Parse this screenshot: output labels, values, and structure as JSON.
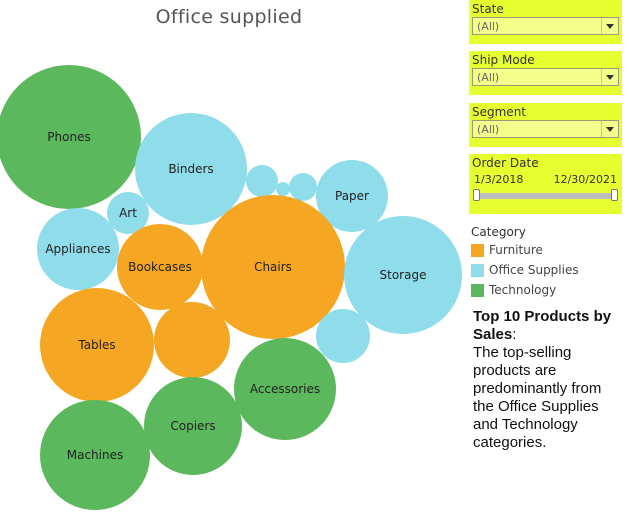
{
  "title": "Office supplied",
  "filters": {
    "state": {
      "label": "State",
      "value": "(All)"
    },
    "ship_mode": {
      "label": "Ship Mode",
      "value": "(All)"
    },
    "segment": {
      "label": "Segment",
      "value": "(All)"
    },
    "order_date": {
      "label": "Order Date",
      "start": "1/3/2018",
      "end": "12/30/2021"
    }
  },
  "legend": {
    "title": "Category",
    "items": [
      {
        "label": "Furniture",
        "color": "#f5a623"
      },
      {
        "label": "Office Supplies",
        "color": "#8fdcea"
      },
      {
        "label": "Technology",
        "color": "#5cb85c"
      }
    ]
  },
  "note": {
    "title": "Top 10 Products by Sales",
    "colon": ":",
    "body": "The top-selling products are predominantly from the Office Supplies and Technology categories."
  },
  "colors": {
    "filter_bg": "#e6ff2e",
    "dropdown_bg": "#f3ff8a"
  },
  "bubbles": [
    {
      "label": "Phones",
      "category": "Technology"
    },
    {
      "label": "Binders",
      "category": "Office Supplies"
    },
    {
      "label": "",
      "category": "Office Supplies"
    },
    {
      "label": "",
      "category": "Office Supplies"
    },
    {
      "label": "",
      "category": "Office Supplies"
    },
    {
      "label": "Paper",
      "category": "Office Supplies"
    },
    {
      "label": "Art",
      "category": "Office Supplies"
    },
    {
      "label": "Appliances",
      "category": "Office Supplies"
    },
    {
      "label": "Bookcases",
      "category": "Furniture"
    },
    {
      "label": "Chairs",
      "category": "Furniture"
    },
    {
      "label": "Storage",
      "category": "Office Supplies"
    },
    {
      "label": "Tables",
      "category": "Furniture"
    },
    {
      "label": "",
      "category": "Furniture"
    },
    {
      "label": "",
      "category": "Office Supplies"
    },
    {
      "label": "Accessories",
      "category": "Technology"
    },
    {
      "label": "Copiers",
      "category": "Technology"
    },
    {
      "label": "Machines",
      "category": "Technology"
    }
  ]
}
